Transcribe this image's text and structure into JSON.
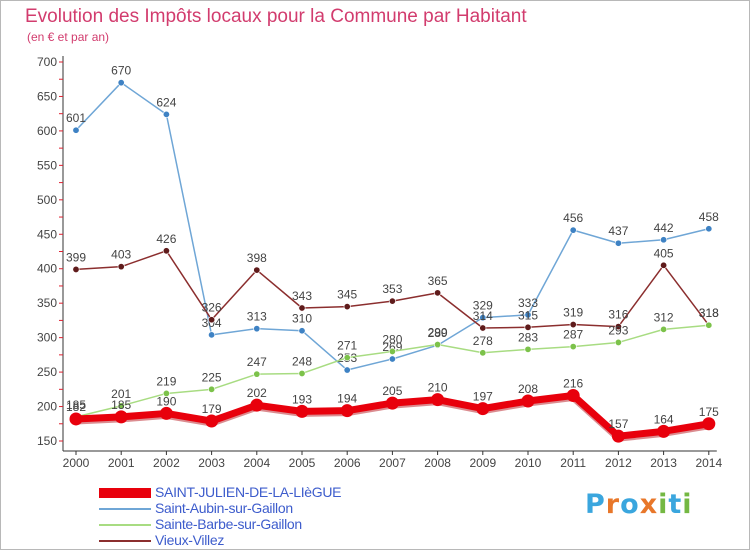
{
  "title": "Evolution des Impôts locaux pour la Commune par Habitant",
  "subtitle": "(en € et par an)",
  "brand": {
    "letters": [
      "P",
      "r",
      "o",
      "x",
      "i",
      "t",
      "i"
    ],
    "colors": [
      "#3aa6de",
      "#e8772a",
      "#3aa6de",
      "#e8772a",
      "#74b843",
      "#3aa6de",
      "#74b843"
    ]
  },
  "chart_data": {
    "type": "line",
    "x": [
      "2000",
      "2001",
      "2002",
      "2003",
      "2004",
      "2005",
      "2006",
      "2007",
      "2008",
      "2009",
      "2010",
      "2011",
      "2012",
      "2013",
      "2014"
    ],
    "ylim": [
      150,
      700
    ],
    "yticks": [
      "150",
      "200",
      "250",
      "300",
      "350",
      "400",
      "450",
      "500",
      "550",
      "600",
      "650",
      "700"
    ],
    "grid": false,
    "legend_position": "bottom-left",
    "series": [
      {
        "name": "Saint-Aubin-sur-Gaillon",
        "color": "#6fa6d6",
        "marker": "#3e82c4",
        "width": 1.5,
        "values": [
          601,
          670,
          624,
          304,
          313,
          310,
          253,
          269,
          289,
          329,
          333,
          456,
          437,
          442,
          458
        ],
        "labels": [
          "601",
          "670",
          "624",
          "304",
          "313",
          "310",
          "253",
          "269",
          "289",
          "329",
          "333",
          "456",
          "437",
          "442",
          "458"
        ]
      },
      {
        "name": "Vieux-Villez",
        "color": "#8b2e2e",
        "marker": "#5f1b1b",
        "width": 1.5,
        "values": [
          399,
          403,
          426,
          326,
          398,
          343,
          345,
          353,
          365,
          314,
          315,
          319,
          316,
          405,
          318
        ],
        "labels": [
          "399",
          "403",
          "426",
          "326",
          "398",
          "343",
          "345",
          "353",
          "365",
          "314",
          "315",
          "319",
          "316",
          "405",
          "318"
        ]
      },
      {
        "name": "Sainte-Barbe-sur-Gaillon",
        "color": "#a8dc82",
        "marker": "#7cc24a",
        "width": 1.5,
        "values": [
          185,
          201,
          219,
          225,
          247,
          248,
          271,
          280,
          290,
          278,
          283,
          287,
          293,
          312,
          318
        ],
        "labels": [
          "185",
          "201",
          "219",
          "225",
          "247",
          "248",
          "271",
          "280",
          "290",
          "278",
          "283",
          "287",
          "293",
          "312",
          "318"
        ]
      },
      {
        "name": "SAINT-JULIEN-DE-LA-LIèGUE",
        "color": "#e8000c",
        "marker": "#e8000c",
        "width": 7,
        "values": [
          182,
          185,
          190,
          179,
          202,
          193,
          194,
          205,
          210,
          197,
          208,
          216,
          157,
          164,
          175
        ],
        "labels": [
          "182",
          "185",
          "190",
          "179",
          "202",
          "193",
          "194",
          "205",
          "210",
          "197",
          "208",
          "216",
          "157",
          "164",
          "175"
        ]
      }
    ],
    "legend_order": [
      "SAINT-JULIEN-DE-LA-LIèGUE",
      "Saint-Aubin-sur-Gaillon",
      "Sainte-Barbe-sur-Gaillon",
      "Vieux-Villez"
    ]
  }
}
